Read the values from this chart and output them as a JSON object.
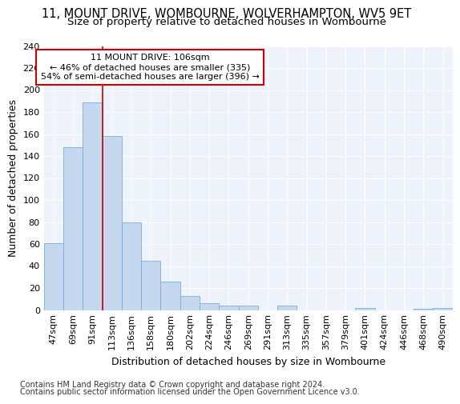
{
  "title1": "11, MOUNT DRIVE, WOMBOURNE, WOLVERHAMPTON, WV5 9ET",
  "title2": "Size of property relative to detached houses in Wombourne",
  "xlabel": "Distribution of detached houses by size in Wombourne",
  "ylabel": "Number of detached properties",
  "categories": [
    "47sqm",
    "69sqm",
    "91sqm",
    "113sqm",
    "136sqm",
    "158sqm",
    "180sqm",
    "202sqm",
    "224sqm",
    "246sqm",
    "269sqm",
    "291sqm",
    "313sqm",
    "335sqm",
    "357sqm",
    "379sqm",
    "401sqm",
    "424sqm",
    "446sqm",
    "468sqm",
    "490sqm"
  ],
  "values": [
    61,
    148,
    189,
    158,
    80,
    45,
    26,
    13,
    6,
    4,
    4,
    0,
    4,
    0,
    0,
    0,
    2,
    0,
    0,
    1,
    2
  ],
  "bar_color": "#c5d8f0",
  "bar_edge_color": "#7aafd4",
  "vline_x_pos": 2.5,
  "vline_color": "#cc0000",
  "annotation_box_text": "11 MOUNT DRIVE: 106sqm\n← 46% of detached houses are smaller (335)\n54% of semi-detached houses are larger (396) →",
  "box_color": "white",
  "box_edge_color": "#cc0000",
  "ylim": [
    0,
    240
  ],
  "yticks": [
    0,
    20,
    40,
    60,
    80,
    100,
    120,
    140,
    160,
    180,
    200,
    220,
    240
  ],
  "footer1": "Contains HM Land Registry data © Crown copyright and database right 2024.",
  "footer2": "Contains public sector information licensed under the Open Government Licence v3.0.",
  "bg_color": "#eef2fb",
  "fig_bg_color": "#ffffff",
  "title_fontsize": 10.5,
  "subtitle_fontsize": 9.5,
  "axis_label_fontsize": 9,
  "tick_fontsize": 8,
  "annotation_fontsize": 8,
  "footer_fontsize": 7
}
